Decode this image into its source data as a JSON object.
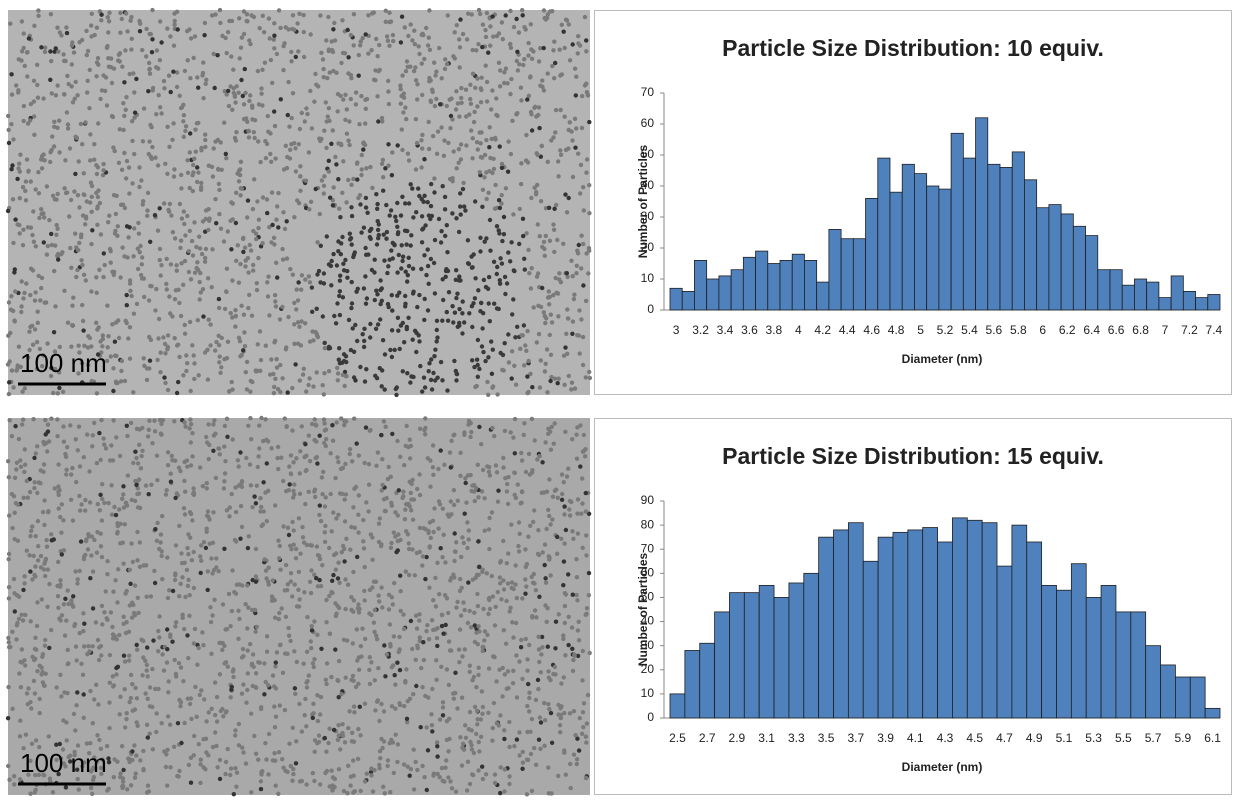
{
  "images": [
    {
      "scale_label": "100 nm"
    },
    {
      "scale_label": "100 nm"
    }
  ],
  "chart_data": [
    {
      "type": "bar",
      "title": "Particle Size Distribution: 10 equiv.",
      "x_label": "Diameter (nm)",
      "y_label": "Number of Particles",
      "color": "#4f81bd",
      "categories": [
        "3",
        null,
        "3.2",
        null,
        "3.4",
        null,
        "3.6",
        null,
        "3.8",
        null,
        "4",
        null,
        "4.2",
        null,
        "4.4",
        null,
        "4.6",
        null,
        "4.8",
        null,
        "5",
        null,
        "5.2",
        null,
        "5.4",
        null,
        "5.6",
        null,
        "5.8",
        null,
        "6",
        null,
        "6.2",
        null,
        "6.4",
        null,
        "6.6",
        null,
        "6.8",
        null,
        "7",
        null,
        "7.2",
        null,
        "7.4"
      ],
      "values": [
        7,
        6,
        16,
        10,
        11,
        13,
        17,
        19,
        15,
        16,
        18,
        16,
        9,
        26,
        23,
        23,
        36,
        49,
        38,
        47,
        44,
        40,
        39,
        57,
        49,
        62,
        47,
        46,
        51,
        42,
        33,
        34,
        31,
        27,
        24,
        13,
        13,
        8,
        10,
        9,
        4,
        11,
        6,
        4,
        5
      ],
      "ylim": [
        0,
        70
      ],
      "yticks": [
        0,
        10,
        20,
        30,
        40,
        50,
        60,
        70
      ]
    },
    {
      "type": "bar",
      "title": "Particle Size Distribution: 15 equiv.",
      "x_label": "Diameter (nm)",
      "y_label": "Number of Particles",
      "color": "#4f81bd",
      "categories": [
        "2.5",
        null,
        "2.7",
        null,
        "2.9",
        null,
        "3.1",
        null,
        "3.3",
        null,
        "3.5",
        null,
        "3.7",
        null,
        "3.9",
        null,
        "4.1",
        null,
        "4.3",
        null,
        "4.5",
        null,
        "4.7",
        null,
        "4.9",
        null,
        "5.1",
        null,
        "5.3",
        null,
        "5.5",
        null,
        "5.7",
        null,
        "5.9",
        null,
        "6.1"
      ],
      "values": [
        10,
        28,
        31,
        44,
        52,
        52,
        55,
        50,
        56,
        60,
        75,
        78,
        81,
        65,
        75,
        77,
        78,
        79,
        73,
        83,
        82,
        81,
        63,
        80,
        73,
        55,
        53,
        64,
        50,
        55,
        44,
        44,
        30,
        22,
        17,
        17,
        4
      ],
      "ylim": [
        0,
        90
      ],
      "yticks": [
        0,
        10,
        20,
        30,
        40,
        50,
        60,
        70,
        80,
        90
      ]
    }
  ]
}
